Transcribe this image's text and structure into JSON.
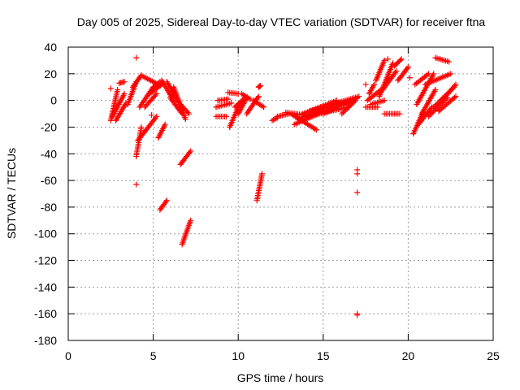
{
  "chart_data": {
    "type": "scatter",
    "title": "Day 005 of 2025, Sidereal Day-to-day VTEC variation (SDTVAR) for receiver ftna",
    "xlabel": "GPS time / hours",
    "ylabel": "SDTVAR / TECUs",
    "xlim": [
      0,
      25
    ],
    "ylim": [
      -180,
      40
    ],
    "xticks": [
      "0",
      "5",
      "10",
      "15",
      "20",
      "25"
    ],
    "xtick_values": [
      0,
      5,
      10,
      15,
      20,
      25
    ],
    "yticks": [
      "40",
      "20",
      "0",
      "-20",
      "-40",
      "-60",
      "-80",
      "-100",
      "-120",
      "-140",
      "-160",
      "-180"
    ],
    "ytick_values": [
      40,
      20,
      0,
      -20,
      -40,
      -60,
      -80,
      -100,
      -120,
      -140,
      -160,
      -180
    ],
    "grid": true,
    "marker": "plus",
    "marker_color": "#ff0000",
    "tracks": [
      {
        "x0": 2.5,
        "x1": 2.9,
        "y0": -15,
        "y1": 8
      },
      {
        "x0": 2.6,
        "x1": 3.3,
        "y0": -12,
        "y1": 5
      },
      {
        "x0": 2.8,
        "x1": 3.4,
        "y0": -15,
        "y1": -2
      },
      {
        "x0": 3.0,
        "x1": 3.3,
        "y0": 13,
        "y1": 14
      },
      {
        "x0": 3.5,
        "x1": 4.0,
        "y0": -3,
        "y1": 14
      },
      {
        "x0": 3.8,
        "x1": 4.3,
        "y0": 10,
        "y1": 19
      },
      {
        "x0": 4.0,
        "x1": 4.3,
        "y0": -42,
        "y1": -20
      },
      {
        "x0": 4.1,
        "x1": 5.2,
        "y0": -30,
        "y1": -12
      },
      {
        "x0": 4.2,
        "x1": 5.0,
        "y0": -5,
        "y1": 10
      },
      {
        "x0": 4.4,
        "x1": 5.3,
        "y0": 18,
        "y1": 12
      },
      {
        "x0": 4.5,
        "x1": 5.2,
        "y0": -5,
        "y1": 5
      },
      {
        "x0": 4.8,
        "x1": 5.5,
        "y0": 5,
        "y1": 12
      },
      {
        "x0": 5.0,
        "x1": 5.4,
        "y0": 10,
        "y1": 14
      },
      {
        "x0": 5.3,
        "x1": 5.7,
        "y0": -28,
        "y1": -18
      },
      {
        "x0": 5.4,
        "x1": 5.8,
        "y0": -82,
        "y1": -75
      },
      {
        "x0": 5.5,
        "x1": 6.2,
        "y0": 15,
        "y1": 0
      },
      {
        "x0": 5.8,
        "x1": 6.6,
        "y0": 14,
        "y1": -3
      },
      {
        "x0": 6.0,
        "x1": 6.7,
        "y0": 2,
        "y1": -10
      },
      {
        "x0": 6.2,
        "x1": 6.9,
        "y0": 10,
        "y1": -14
      },
      {
        "x0": 6.4,
        "x1": 7.1,
        "y0": 0,
        "y1": -10
      },
      {
        "x0": 6.6,
        "x1": 7.2,
        "y0": -48,
        "y1": -38
      },
      {
        "x0": 6.7,
        "x1": 7.2,
        "y0": -108,
        "y1": -90
      },
      {
        "x0": 8.7,
        "x1": 9.3,
        "y0": -12,
        "y1": -12
      },
      {
        "x0": 8.7,
        "x1": 9.6,
        "y0": -5,
        "y1": -2
      },
      {
        "x0": 8.8,
        "x1": 9.4,
        "y0": 0,
        "y1": 1
      },
      {
        "x0": 9.4,
        "x1": 10.0,
        "y0": 6,
        "y1": 5
      },
      {
        "x0": 9.5,
        "x1": 10.1,
        "y0": -20,
        "y1": -2
      },
      {
        "x0": 9.8,
        "x1": 10.4,
        "y0": -5,
        "y1": 2
      },
      {
        "x0": 10.0,
        "x1": 10.5,
        "y0": -10,
        "y1": 2
      },
      {
        "x0": 10.2,
        "x1": 10.7,
        "y0": 5,
        "y1": 1
      },
      {
        "x0": 10.5,
        "x1": 11.2,
        "y0": -10,
        "y1": 3
      },
      {
        "x0": 10.9,
        "x1": 11.5,
        "y0": 0,
        "y1": -5
      },
      {
        "x0": 11.1,
        "x1": 11.4,
        "y0": -75,
        "y1": -55
      },
      {
        "x0": 11.2,
        "x1": 11.3,
        "y0": 10,
        "y1": 11
      },
      {
        "x0": 12.0,
        "x1": 12.3,
        "y0": -15,
        "y1": -13
      },
      {
        "x0": 12.3,
        "x1": 13.0,
        "y0": -12,
        "y1": -10
      },
      {
        "x0": 12.8,
        "x1": 13.9,
        "y0": -9,
        "y1": -11
      },
      {
        "x0": 13.1,
        "x1": 14.6,
        "y0": -10,
        "y1": -22
      },
      {
        "x0": 13.3,
        "x1": 15.1,
        "y0": -18,
        "y1": -8
      },
      {
        "x0": 13.5,
        "x1": 15.5,
        "y0": -14,
        "y1": -4
      },
      {
        "x0": 13.8,
        "x1": 15.8,
        "y0": -10,
        "y1": 0
      },
      {
        "x0": 14.0,
        "x1": 16.5,
        "y0": -12,
        "y1": -5
      },
      {
        "x0": 14.2,
        "x1": 16.8,
        "y0": -8,
        "y1": 0
      },
      {
        "x0": 15.0,
        "x1": 17.0,
        "y0": -10,
        "y1": 2
      },
      {
        "x0": 15.5,
        "x1": 17.1,
        "y0": -3,
        "y1": 3
      },
      {
        "x0": 16.1,
        "x1": 16.9,
        "y0": -10,
        "y1": 0
      },
      {
        "x0": 17.5,
        "x1": 18.2,
        "y0": -5,
        "y1": -5
      },
      {
        "x0": 17.6,
        "x1": 18.4,
        "y0": 0,
        "y1": 8
      },
      {
        "x0": 17.7,
        "x1": 18.0,
        "y0": 5,
        "y1": 12
      },
      {
        "x0": 17.8,
        "x1": 18.6,
        "y0": -3,
        "y1": 0
      },
      {
        "x0": 18.1,
        "x1": 18.6,
        "y0": 15,
        "y1": 30
      },
      {
        "x0": 18.3,
        "x1": 19.1,
        "y0": 3,
        "y1": 28
      },
      {
        "x0": 18.5,
        "x1": 19.3,
        "y0": 8,
        "y1": 22
      },
      {
        "x0": 18.6,
        "x1": 19.5,
        "y0": -10,
        "y1": -10
      },
      {
        "x0": 19.2,
        "x1": 19.6,
        "y0": 26,
        "y1": 31
      },
      {
        "x0": 19.4,
        "x1": 20.0,
        "y0": 15,
        "y1": 25
      },
      {
        "x0": 20.3,
        "x1": 20.9,
        "y0": -25,
        "y1": -8
      },
      {
        "x0": 20.4,
        "x1": 21.2,
        "y0": 12,
        "y1": 20
      },
      {
        "x0": 20.5,
        "x1": 21.5,
        "y0": -3,
        "y1": 20
      },
      {
        "x0": 20.6,
        "x1": 21.4,
        "y0": -18,
        "y1": -5
      },
      {
        "x0": 20.8,
        "x1": 21.6,
        "y0": -10,
        "y1": 8
      },
      {
        "x0": 21.0,
        "x1": 22.5,
        "y0": 12,
        "y1": 20
      },
      {
        "x0": 21.2,
        "x1": 22.3,
        "y0": -12,
        "y1": 2
      },
      {
        "x0": 21.5,
        "x1": 22.7,
        "y0": -5,
        "y1": 10
      },
      {
        "x0": 21.6,
        "x1": 22.4,
        "y0": 32,
        "y1": 29
      },
      {
        "x0": 21.8,
        "x1": 22.8,
        "y0": -8,
        "y1": 3
      },
      {
        "x0": 22.0,
        "x1": 22.8,
        "y0": 0,
        "y1": 12
      }
    ],
    "points": [
      {
        "x": 2.5,
        "y": 9
      },
      {
        "x": 4.0,
        "y": 32
      },
      {
        "x": 4.0,
        "y": -63
      },
      {
        "x": 4.9,
        "y": -11
      },
      {
        "x": 17.0,
        "y": -52
      },
      {
        "x": 17.0,
        "y": -55
      },
      {
        "x": 17.0,
        "y": -69
      },
      {
        "x": 17.0,
        "y": -160
      },
      {
        "x": 17.0,
        "y": -161
      },
      {
        "x": 17.5,
        "y": 12
      },
      {
        "x": 18.8,
        "y": 31
      },
      {
        "x": 20.1,
        "y": 17
      }
    ]
  }
}
